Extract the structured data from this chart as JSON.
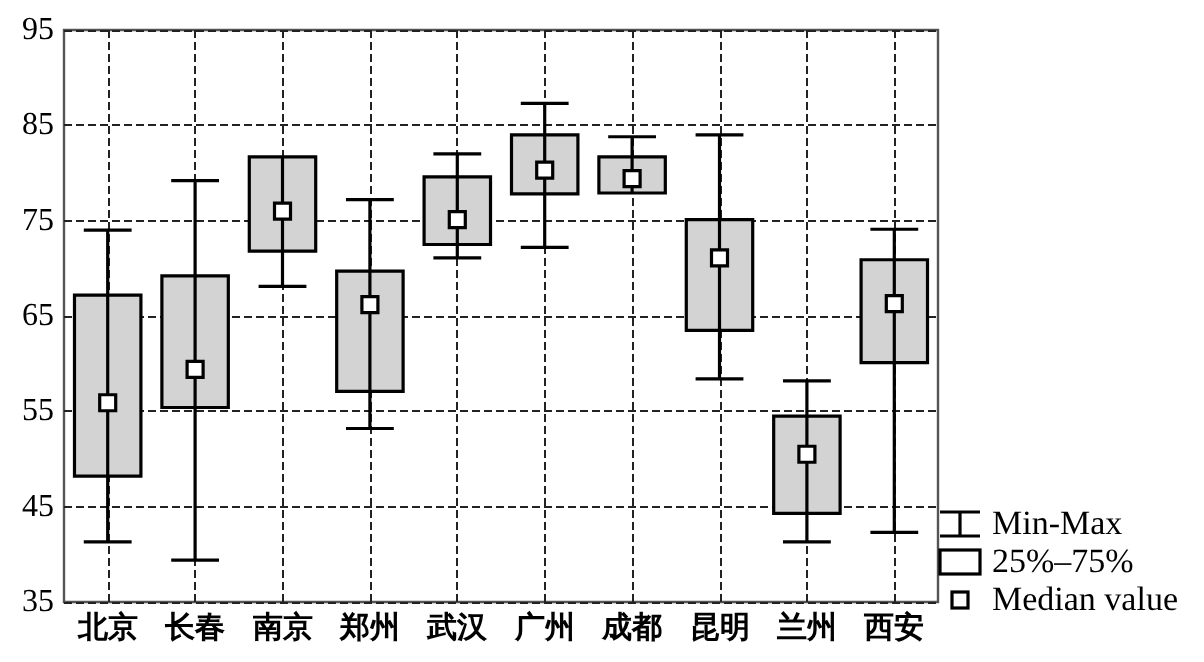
{
  "chart_data": {
    "type": "box",
    "categories": [
      "北京",
      "长春",
      "南京",
      "郑州",
      "武汉",
      "广州",
      "成都",
      "昆明",
      "兰州",
      "西安"
    ],
    "series": [
      {
        "color": "#d3d3d3",
        "boxes": [
          {
            "low": 41.3,
            "q1": 48.2,
            "median": 55.9,
            "q3": 67.2,
            "high": 74.0
          },
          {
            "low": 39.4,
            "q1": 55.4,
            "median": 59.4,
            "q3": 69.2,
            "high": 79.2
          },
          {
            "low": 68.1,
            "q1": 71.8,
            "median": 76.0,
            "q3": 81.7,
            "high": 81.7
          },
          {
            "low": 53.2,
            "q1": 57.1,
            "median": 66.2,
            "q3": 69.7,
            "high": 77.2
          },
          {
            "low": 71.1,
            "q1": 72.5,
            "median": 75.1,
            "q3": 79.6,
            "high": 82.0
          },
          {
            "low": 72.2,
            "q1": 77.8,
            "median": 80.3,
            "q3": 84.0,
            "high": 87.3
          },
          {
            "low": 77.9,
            "q1": 77.9,
            "median": 79.4,
            "q3": 81.7,
            "high": 83.8
          },
          {
            "low": 58.4,
            "q1": 63.5,
            "median": 71.1,
            "q3": 75.1,
            "high": 84.0
          },
          {
            "low": 41.3,
            "q1": 44.3,
            "median": 50.5,
            "q3": 54.5,
            "high": 58.2
          },
          {
            "low": 42.3,
            "q1": 60.1,
            "median": 66.3,
            "q3": 70.9,
            "high": 74.1
          }
        ]
      }
    ],
    "ylim": [
      35,
      95
    ],
    "yticks": [
      35,
      45,
      55,
      65,
      75,
      85,
      95
    ],
    "grid": true,
    "line_style": "dashed",
    "annotations": [
      "Min-Max",
      "25%–75%",
      "Median value"
    ]
  }
}
